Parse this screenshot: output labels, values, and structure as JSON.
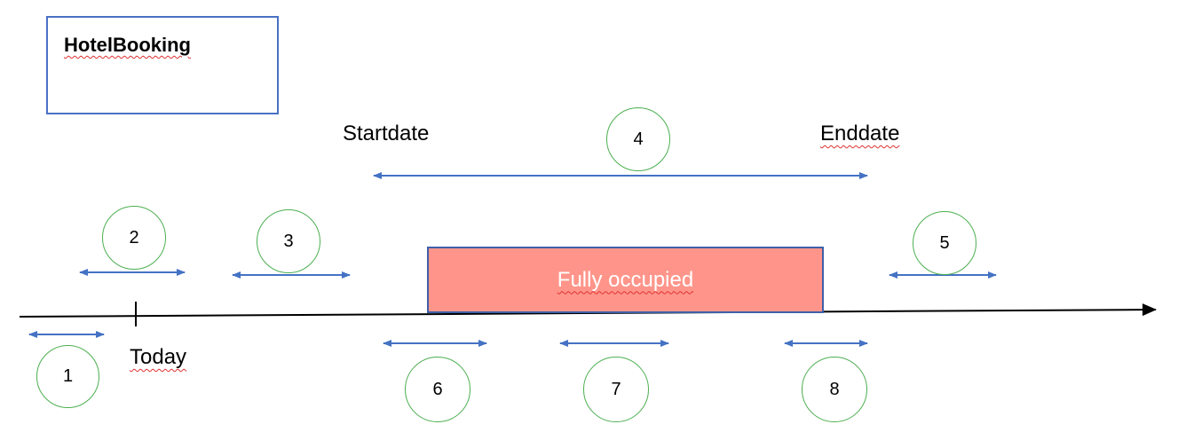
{
  "diagram": {
    "entity_title": "HotelBooking",
    "labels": {
      "startdate": "Startdate",
      "enddate": "Enddate",
      "today": "Today",
      "fully_occupied": "Fully occupied"
    },
    "cases": [
      "1",
      "2",
      "3",
      "4",
      "5",
      "6",
      "7",
      "8"
    ],
    "colors": {
      "arrow": "#4472c4",
      "circle_border": "#4caf50",
      "occupied_fill": "#ff958a",
      "box_border": "#4a72c4",
      "timeline": "#000000"
    }
  }
}
